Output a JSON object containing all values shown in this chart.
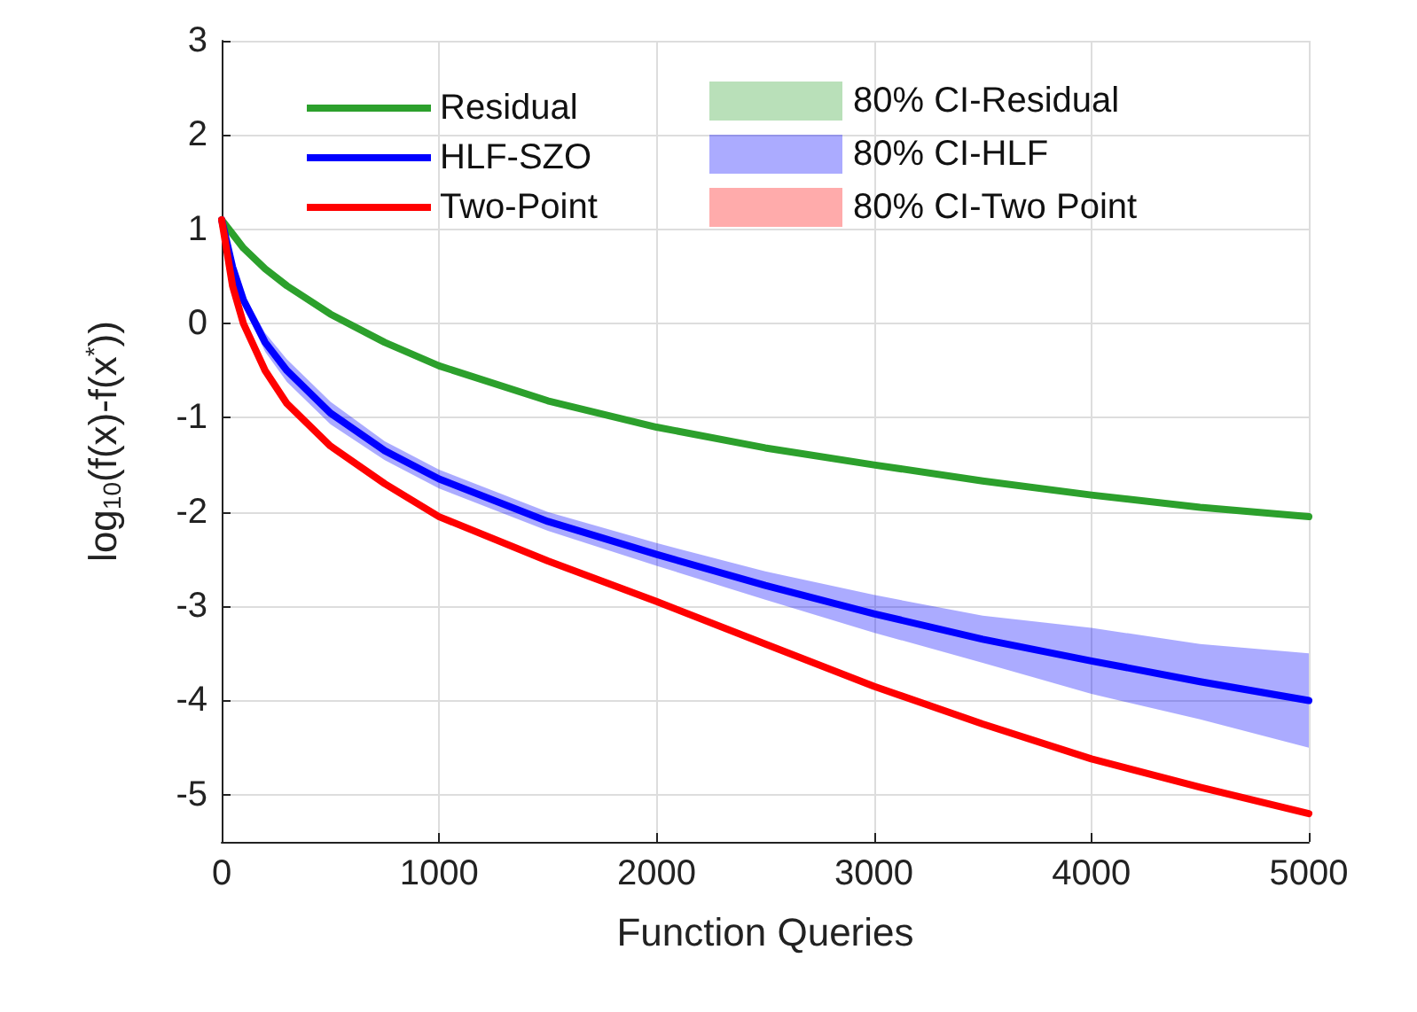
{
  "chart_data": {
    "type": "line",
    "xlabel": "Function Queries",
    "ylabel": "log$_{10}$(f(x)-f(x$^{*}$))",
    "x": [
      0,
      50,
      100,
      200,
      300,
      500,
      750,
      1000,
      1500,
      2000,
      2500,
      3000,
      3500,
      4000,
      4500,
      5000
    ],
    "xlim": [
      0,
      5000
    ],
    "xticks": [
      0,
      1000,
      2000,
      3000,
      4000,
      5000
    ],
    "ylim": [
      -5.5,
      3
    ],
    "yticks": [
      -5,
      -4,
      -3,
      -2,
      -1,
      0,
      1,
      2,
      3
    ],
    "grid": true,
    "legend": "top",
    "marker": "none",
    "line_style": "solid",
    "annotations": [
      "80% CI-Residual",
      "80% CI-HLF",
      "80% CI-Two Point"
    ],
    "series": [
      {
        "name": "Residual",
        "color": "#2ca02c",
        "values": [
          1.1,
          0.95,
          0.8,
          0.58,
          0.4,
          0.1,
          -0.2,
          -0.45,
          -0.82,
          -1.1,
          -1.32,
          -1.5,
          -1.67,
          -1.82,
          -1.95,
          -2.05
        ]
      },
      {
        "name": "HLF-SZO",
        "color": "#0000ff",
        "values": [
          1.1,
          0.6,
          0.25,
          -0.2,
          -0.5,
          -0.95,
          -1.35,
          -1.65,
          -2.1,
          -2.45,
          -2.78,
          -3.08,
          -3.35,
          -3.58,
          -3.8,
          -4.0
        ],
        "lower": [
          1.1,
          0.57,
          0.19,
          -0.3,
          -0.62,
          -1.07,
          -1.45,
          -1.75,
          -2.2,
          -2.57,
          -2.93,
          -3.28,
          -3.6,
          -3.93,
          -4.2,
          -4.5
        ],
        "upper": [
          1.1,
          0.63,
          0.31,
          -0.1,
          -0.38,
          -0.83,
          -1.25,
          -1.55,
          -2.0,
          -2.33,
          -2.63,
          -2.88,
          -3.1,
          -3.23,
          -3.4,
          -3.5
        ]
      },
      {
        "name": "Two-Point",
        "color": "#ff0000",
        "values": [
          1.1,
          0.4,
          0.0,
          -0.5,
          -0.85,
          -1.3,
          -1.7,
          -2.05,
          -2.52,
          -2.95,
          -3.4,
          -3.85,
          -4.25,
          -4.62,
          -4.92,
          -5.2
        ]
      }
    ]
  }
}
